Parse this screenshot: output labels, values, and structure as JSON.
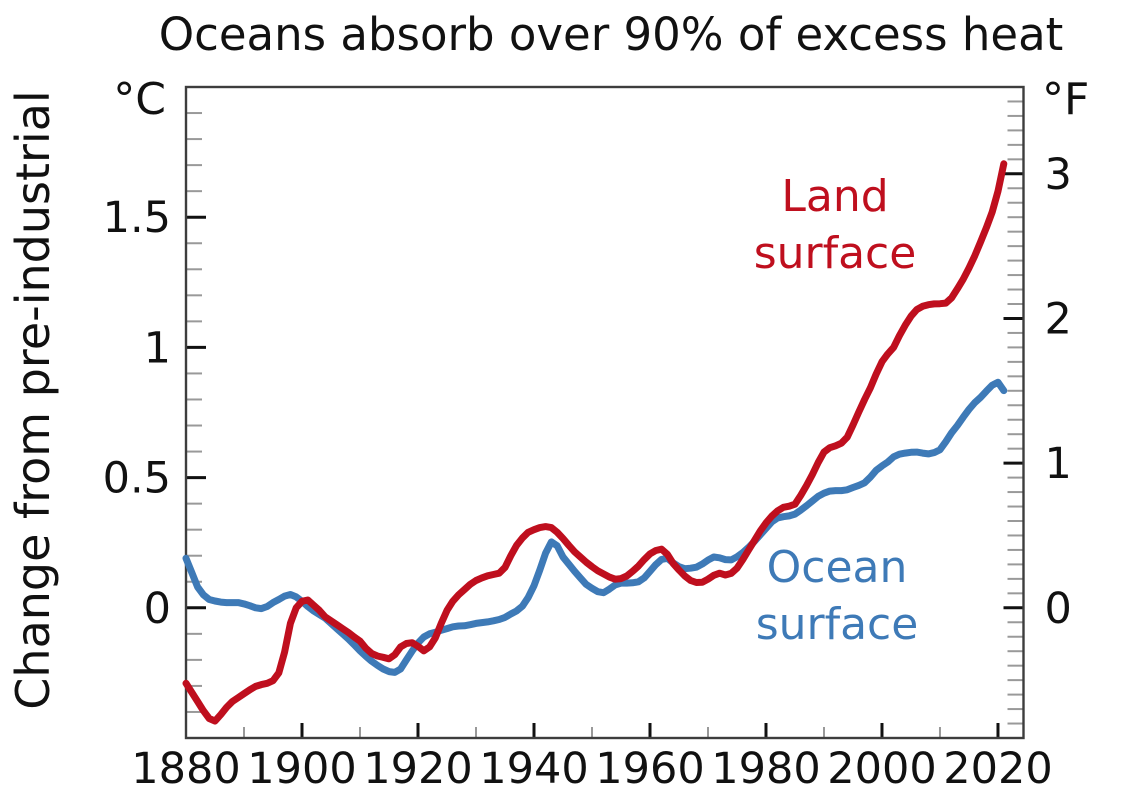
{
  "colors": {
    "background": "#ffffff",
    "text": "#111111",
    "frame": "#3d3d3d",
    "major_tick": "#111111",
    "minor_tick": "#999999",
    "land": "#bf0f1e",
    "ocean": "#3e7ab7"
  },
  "chart_data": {
    "type": "line",
    "title": "Oceans absorb over 90% of excess heat",
    "ylabel": "Change from pre-industrial",
    "unit_left": "°C",
    "unit_right": "°F",
    "grid": false,
    "legend_position": "inline-labels",
    "xlim": [
      1880,
      2024.4
    ],
    "ylim_c": [
      -0.5,
      2.0
    ],
    "c_to_f_factor": 1.8,
    "year_start": 1880,
    "year_end": 2021,
    "x_tick_labels": [
      {
        "year": 1880,
        "label": "1880"
      },
      {
        "year": 1900,
        "label": "1900"
      },
      {
        "year": 1920,
        "label": "1920"
      },
      {
        "year": 1940,
        "label": "1940"
      },
      {
        "year": 1960,
        "label": "1960"
      },
      {
        "year": 1980,
        "label": "1980"
      },
      {
        "year": 2000,
        "label": "2000"
      },
      {
        "year": 2020,
        "label": "2020"
      }
    ],
    "x_ticks_major": [
      1900,
      1920,
      1940,
      1960,
      1980,
      2000,
      2020
    ],
    "x_ticks_minor": [
      1890,
      1910,
      1930,
      1950,
      1970,
      1990,
      2010
    ],
    "left_ticks_major_c": [
      {
        "v": 0,
        "label": "0"
      },
      {
        "v": 0.5,
        "label": "0.5"
      },
      {
        "v": 1,
        "label": "1"
      },
      {
        "v": 1.5,
        "label": "1.5"
      }
    ],
    "left_minor_step_c": 0.1,
    "left_minor_range_c": [
      -0.4,
      1.9
    ],
    "right_ticks_major_f": [
      {
        "v": 0,
        "label": "0"
      },
      {
        "v": 1,
        "label": "1"
      },
      {
        "v": 2,
        "label": "2"
      },
      {
        "v": 3,
        "label": "3"
      }
    ],
    "right_minor_step_f": 0.1,
    "right_minor_range_f": [
      -0.8,
      3.5
    ],
    "series": [
      {
        "name": "Land surface",
        "label_lines": [
          "Land",
          "surface"
        ],
        "color": "#bf0f1e",
        "values_c": [
          -0.29,
          -0.325,
          -0.36,
          -0.395,
          -0.425,
          -0.435,
          -0.41,
          -0.382,
          -0.36,
          -0.345,
          -0.33,
          -0.315,
          -0.302,
          -0.295,
          -0.29,
          -0.28,
          -0.25,
          -0.17,
          -0.06,
          0.0,
          0.025,
          0.03,
          0.01,
          -0.01,
          -0.035,
          -0.05,
          -0.065,
          -0.08,
          -0.095,
          -0.112,
          -0.128,
          -0.155,
          -0.175,
          -0.185,
          -0.19,
          -0.196,
          -0.18,
          -0.15,
          -0.137,
          -0.134,
          -0.148,
          -0.165,
          -0.15,
          -0.115,
          -0.06,
          -0.01,
          0.025,
          0.05,
          0.07,
          0.09,
          0.105,
          0.115,
          0.123,
          0.128,
          0.133,
          0.155,
          0.2,
          0.24,
          0.268,
          0.29,
          0.3,
          0.308,
          0.312,
          0.308,
          0.29,
          0.266,
          0.24,
          0.215,
          0.195,
          0.175,
          0.158,
          0.142,
          0.13,
          0.118,
          0.11,
          0.112,
          0.122,
          0.14,
          0.16,
          0.185,
          0.207,
          0.22,
          0.225,
          0.205,
          0.17,
          0.145,
          0.122,
          0.105,
          0.097,
          0.098,
          0.11,
          0.125,
          0.133,
          0.126,
          0.132,
          0.152,
          0.185,
          0.222,
          0.258,
          0.295,
          0.326,
          0.352,
          0.372,
          0.386,
          0.39,
          0.398,
          0.432,
          0.47,
          0.512,
          0.558,
          0.598,
          0.615,
          0.622,
          0.632,
          0.655,
          0.702,
          0.752,
          0.8,
          0.845,
          0.898,
          0.945,
          0.975,
          1.0,
          1.045,
          1.085,
          1.12,
          1.145,
          1.158,
          1.164,
          1.167,
          1.168,
          1.17,
          1.19,
          1.225,
          1.262,
          1.305,
          1.352,
          1.405,
          1.46,
          1.52,
          1.6,
          1.705
        ]
      },
      {
        "name": "Ocean surface",
        "label_lines": [
          "Ocean",
          "surface"
        ],
        "color": "#3e7ab7",
        "values_c": [
          0.19,
          0.135,
          0.08,
          0.05,
          0.032,
          0.026,
          0.022,
          0.02,
          0.02,
          0.02,
          0.015,
          0.008,
          0.0,
          -0.003,
          0.005,
          0.02,
          0.032,
          0.045,
          0.051,
          0.042,
          0.025,
          0.005,
          -0.012,
          -0.026,
          -0.04,
          -0.06,
          -0.08,
          -0.1,
          -0.12,
          -0.142,
          -0.165,
          -0.186,
          -0.205,
          -0.221,
          -0.235,
          -0.245,
          -0.248,
          -0.235,
          -0.2,
          -0.166,
          -0.135,
          -0.112,
          -0.1,
          -0.094,
          -0.086,
          -0.08,
          -0.073,
          -0.07,
          -0.069,
          -0.065,
          -0.06,
          -0.057,
          -0.054,
          -0.05,
          -0.045,
          -0.037,
          -0.024,
          -0.012,
          0.006,
          0.04,
          0.085,
          0.145,
          0.21,
          0.253,
          0.238,
          0.195,
          0.168,
          0.14,
          0.115,
          0.09,
          0.075,
          0.062,
          0.058,
          0.072,
          0.088,
          0.095,
          0.095,
          0.096,
          0.1,
          0.115,
          0.14,
          0.166,
          0.186,
          0.19,
          0.172,
          0.158,
          0.15,
          0.152,
          0.156,
          0.168,
          0.183,
          0.195,
          0.192,
          0.185,
          0.184,
          0.196,
          0.212,
          0.232,
          0.255,
          0.28,
          0.305,
          0.33,
          0.345,
          0.35,
          0.353,
          0.36,
          0.375,
          0.392,
          0.41,
          0.428,
          0.44,
          0.448,
          0.45,
          0.45,
          0.453,
          0.462,
          0.47,
          0.48,
          0.502,
          0.528,
          0.545,
          0.56,
          0.58,
          0.59,
          0.594,
          0.597,
          0.598,
          0.594,
          0.591,
          0.596,
          0.607,
          0.638,
          0.672,
          0.7,
          0.732,
          0.762,
          0.788,
          0.808,
          0.832,
          0.855,
          0.866,
          0.834
        ]
      }
    ]
  }
}
